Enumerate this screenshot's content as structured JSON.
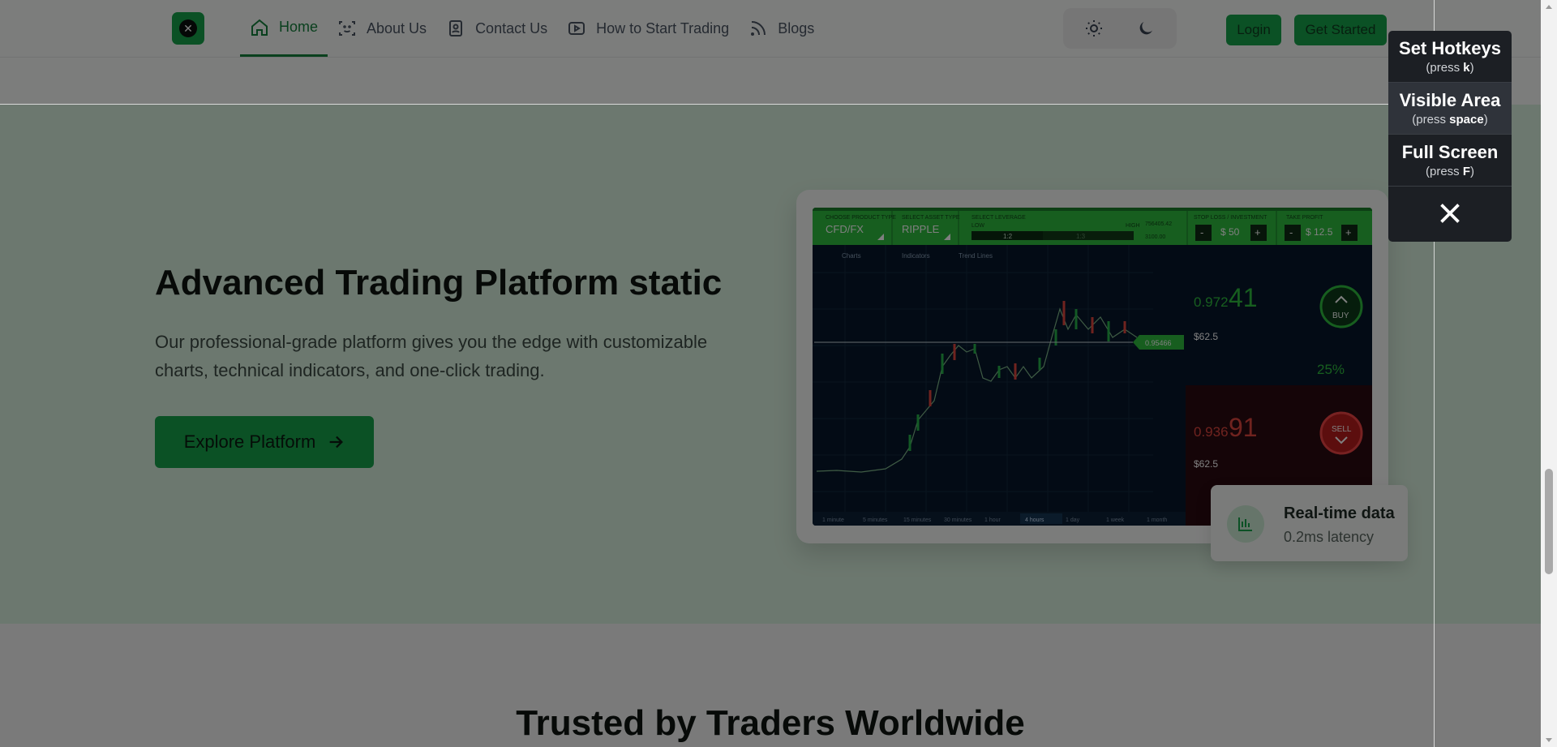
{
  "nav": {
    "items": [
      {
        "label": "Home",
        "icon": "home-icon",
        "active": true
      },
      {
        "label": "About Us",
        "icon": "face-scan-icon"
      },
      {
        "label": "Contact Us",
        "icon": "contact-card-icon"
      },
      {
        "label": "How to Start Trading",
        "icon": "play-icon"
      },
      {
        "label": "Blogs",
        "icon": "rss-icon"
      }
    ],
    "login_label": "Login",
    "get_started_label": "Get Started"
  },
  "hero": {
    "title": "Advanced Trading Platform static",
    "description": "Our professional-grade platform gives you the edge with customizable charts, technical indicators, and one-click trading.",
    "cta_label": "Explore Platform"
  },
  "platform": {
    "product_type_label": "CHOOSE PRODUCT TYPE",
    "product_type": "CFD/FX",
    "asset_type_label": "SELECT ASSET TYPE",
    "asset_type": "RIPPLE",
    "leverage_label": "SELECT LEVERAGE",
    "leverage_low": "LOW",
    "leverage_high": "HIGH",
    "leverage_value": "1:2",
    "leverage_alt": "1:3",
    "invest_value_1": "756405.42",
    "invest_value_2": "3100.00",
    "stop_loss_label": "STOP LOSS / INVESTMENT",
    "stop_loss": "$ 50",
    "take_profit_label": "TAKE PROFIT",
    "take_profit": "$ 12.5",
    "toolbar": [
      "Charts",
      "Indicators",
      "Trend Lines"
    ],
    "current_price": "0.95466",
    "buy_price_small": "0.972",
    "buy_price_big": "41",
    "buy_amount": "$62.5",
    "buy_pct": "25%",
    "buy_label": "BUY",
    "sell_price_small": "0.936",
    "sell_price_big": "91",
    "sell_amount": "$62.5",
    "sell_label": "SELL",
    "timeframes": [
      "1 minute",
      "5 minutes",
      "15 minutes",
      "30 minutes",
      "1 hour",
      "4 hours",
      "1 day",
      "1 week",
      "1 month"
    ],
    "active_timeframe": "4 hours"
  },
  "realtime": {
    "title": "Real-time data",
    "subtitle": "0.2ms latency"
  },
  "trusted_title": "Trusted by Traders Worldwide",
  "hotkeys": {
    "items": [
      {
        "main": "Set Hotkeys",
        "pre": "(press ",
        "key": "k",
        "post": ")"
      },
      {
        "main": "Visible Area",
        "pre": "(press ",
        "key": "space",
        "post": ")"
      },
      {
        "main": "Full Screen",
        "pre": "(press ",
        "key": "F",
        "post": ")"
      }
    ]
  },
  "colors": {
    "brand": "#16a34a",
    "hero_bg": "#d9f0de",
    "overlay": "rgba(0,0,0,0.5)"
  }
}
